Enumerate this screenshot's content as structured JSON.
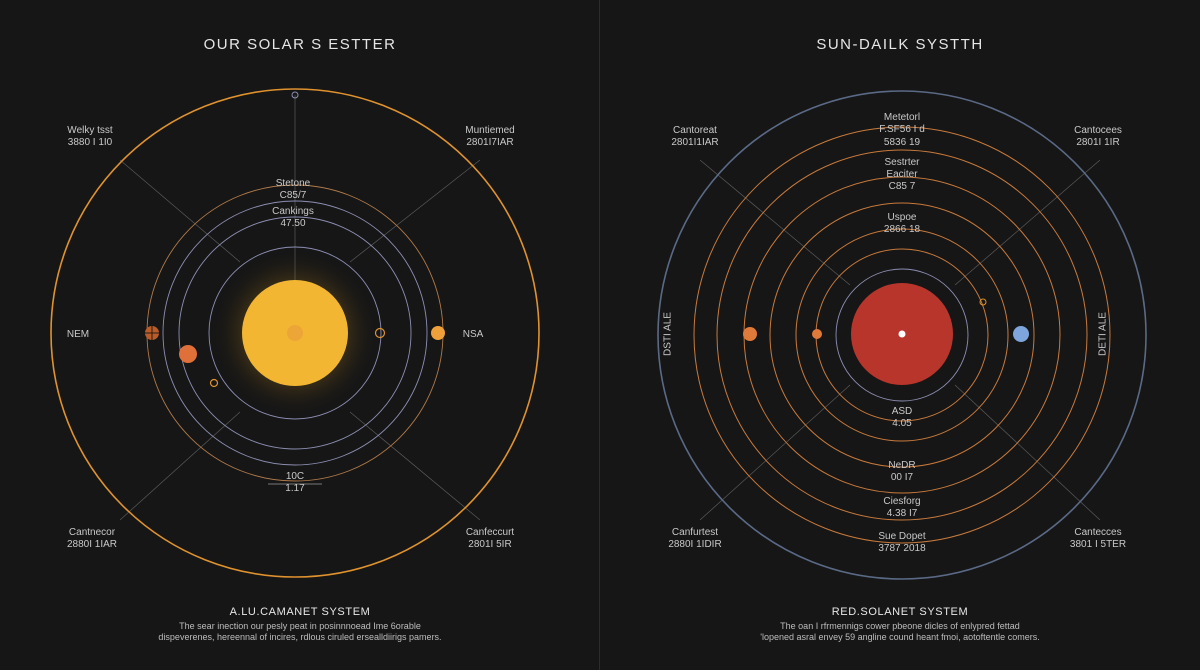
{
  "left": {
    "title": "OUR SOLAR S ESTTER",
    "labels": {
      "top_left": [
        "Welky tsst",
        "3880 I 1I0"
      ],
      "top_right": [
        "Muntiemed",
        "2801I7IAR"
      ],
      "inner_top": [
        "Stetone",
        "C85/7"
      ],
      "inner_mid": [
        "Cankings",
        "47.50"
      ],
      "left": "NEM",
      "right": "NSA",
      "bottom_inner": [
        "10C",
        "1.17"
      ],
      "bottom_left": [
        "Cantnecor",
        "2880I 1IAR"
      ],
      "bottom_right": [
        "Canfeccurt",
        "2801I 5IR"
      ]
    },
    "system_title": "A.LU.CAMANET SYSTEM",
    "description": [
      "The sear inection our pesly peat in posinnnoead Ime 6orable",
      "dispeverenes, hereennal of incires, rdlous ciruled ersealldiirigs pamers."
    ],
    "colors": {
      "sun": "#f2b632",
      "outer_orbit": "#e0922e",
      "inner_orbit": "#8d8fb3"
    }
  },
  "right": {
    "title": "SUN-DAILK SYSTTH",
    "labels": {
      "top_left": [
        "Cantoreat",
        "2801I1IAR"
      ],
      "top_right": [
        "Cantocees",
        "2801I 1IR"
      ],
      "ring_1": [
        "Metetorl",
        "F.SF56 I d"
      ],
      "ring_2": [
        "5836 19"
      ],
      "ring_3": [
        "Sestrter",
        "Eaciter",
        "C85 7"
      ],
      "ring_4": [
        "Uspoe",
        "2866 18"
      ],
      "inner_bottom": [
        "ASD",
        "4.05"
      ],
      "below_1": [
        "NeDR",
        "00 I7"
      ],
      "below_2": [
        "Ciesforg",
        "4.38 I7"
      ],
      "below_3": [
        "Sue Dopet",
        "3787 2018"
      ],
      "bottom_left": [
        "Canfurtest",
        "2880I 1IDIR"
      ],
      "bottom_right": [
        "Cantecces",
        "3801 I 5TER"
      ],
      "side_left": "DSTI ALE",
      "side_right": "DETI ALE"
    },
    "system_title": "RED.SOLANET SYSTEM",
    "description": [
      "The oan I rfrmennigs cower pbeone dicles of enlypred fettad",
      "'lopened asral envey 59 angline cound heant fmoi, aotoftentle comers."
    ],
    "colors": {
      "sun": "#b8352b",
      "outer_orbit": "#5a6a86",
      "inner_orbit": "#c87a3c"
    }
  }
}
